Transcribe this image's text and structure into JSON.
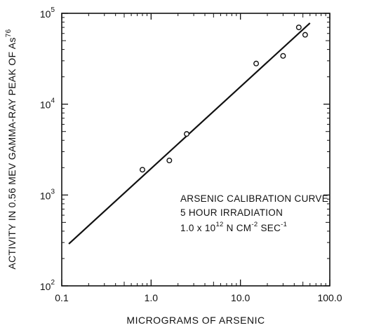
{
  "chart_data": {
    "type": "scatter",
    "title": "",
    "xlabel": "MICROGRAMS OF ARSENIC",
    "ylabel_main": "ACTIVITY IN 0.56 MEV GAMMA-RAY PEAK OF As",
    "ylabel_sup": "76",
    "x_scale": "log",
    "y_scale": "log",
    "xlim": [
      0.1,
      100.0
    ],
    "ylim": [
      100,
      100000
    ],
    "grid": false,
    "x_tick_labels": [
      {
        "value": 0.1,
        "label": "0.1"
      },
      {
        "value": 1.0,
        "label": "1.0"
      },
      {
        "value": 10.0,
        "label": "10.0"
      },
      {
        "value": 100.0,
        "label": "100.0"
      }
    ],
    "y_tick_labels": [
      {
        "value": 100,
        "base": "10",
        "exp": "2"
      },
      {
        "value": 1000,
        "base": "10",
        "exp": "3"
      },
      {
        "value": 10000,
        "base": "10",
        "exp": "4"
      },
      {
        "value": 100000,
        "base": "10",
        "exp": "5"
      }
    ],
    "series": [
      {
        "points": [
          {
            "x": 0.8,
            "y": 1900
          },
          {
            "x": 1.6,
            "y": 2400
          },
          {
            "x": 2.5,
            "y": 4700
          },
          {
            "x": 15.0,
            "y": 28000
          },
          {
            "x": 30.0,
            "y": 34000
          },
          {
            "x": 45.0,
            "y": 70000
          },
          {
            "x": 53.0,
            "y": 58000
          }
        ]
      }
    ],
    "fit_line": {
      "x": [
        0.12,
        60.0
      ],
      "y": [
        290,
        78000
      ]
    },
    "annotation": {
      "line1": "ARSENIC CALIBRATION CURVE",
      "line2": "5  HOUR IRRADIATION",
      "line3_pre": "1.0 x 10",
      "line3_exp1": "12",
      "line3_mid": " N CM",
      "line3_exp2": "-2",
      "line3_post": " SEC",
      "line3_exp3": "-1"
    }
  }
}
